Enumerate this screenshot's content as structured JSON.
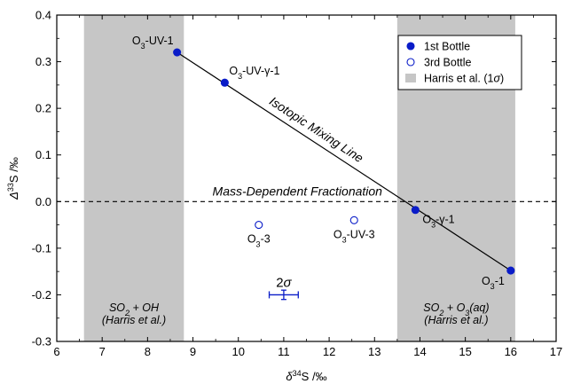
{
  "chart_data": {
    "type": "scatter",
    "xlabel": "δ34S /‰",
    "ylabel": "Δ33S /‰",
    "xlim": [
      6,
      17
    ],
    "ylim": [
      -0.3,
      0.4
    ],
    "xticks": [
      6,
      7,
      8,
      9,
      10,
      11,
      12,
      13,
      14,
      15,
      16,
      17
    ],
    "yticks": [
      -0.3,
      -0.2,
      -0.1,
      0.0,
      0.1,
      0.2,
      0.3,
      0.4
    ],
    "ytick_labels": [
      "-0.3",
      "-0.2",
      "-0.1",
      "0.0",
      "0.1",
      "0.2",
      "0.3",
      "0.4"
    ],
    "grid": false,
    "legend_position": "top-right",
    "shaded_regions": [
      {
        "x": [
          6.6,
          8.8
        ],
        "label_line1": "SO2 + OH",
        "label_line2": "(Harris et al.)"
      },
      {
        "x": [
          13.5,
          16.1
        ],
        "label_line1": "SO2 + O3(aq)",
        "label_line2": "(Harris et al.)"
      }
    ],
    "series": [
      {
        "name": "1st Bottle",
        "marker": "filled-circle",
        "points": [
          {
            "label": "O3-UV-1",
            "x": 8.65,
            "y": 0.32
          },
          {
            "label": "O3-UV-γ-1",
            "x": 9.7,
            "y": 0.255
          },
          {
            "label": "O3-γ-1",
            "x": 13.9,
            "y": -0.018
          },
          {
            "label": "O3-1",
            "x": 16.0,
            "y": -0.148
          }
        ]
      },
      {
        "name": "3rd Bottle",
        "marker": "open-circle",
        "points": [
          {
            "label": "O3-3",
            "x": 10.45,
            "y": -0.05
          },
          {
            "label": "O3-UV-3",
            "x": 12.55,
            "y": -0.04
          }
        ]
      }
    ],
    "shade_legend": "Harris et al. (1σ)",
    "mixing_line": {
      "label": "Isotopic Mixing Line",
      "x": [
        8.65,
        16.0
      ],
      "y": [
        0.32,
        -0.148
      ]
    },
    "reference_line": {
      "label": "Mass-Dependent Fractionation",
      "y": 0.0
    },
    "error_bar": {
      "label": "2σ",
      "x": 11.0,
      "y": -0.2,
      "xerr": 0.32,
      "yerr": 0.01
    },
    "colors": {
      "marker": "#0a1cc8",
      "shade": "#c6c6c6",
      "line": "#000000"
    }
  }
}
